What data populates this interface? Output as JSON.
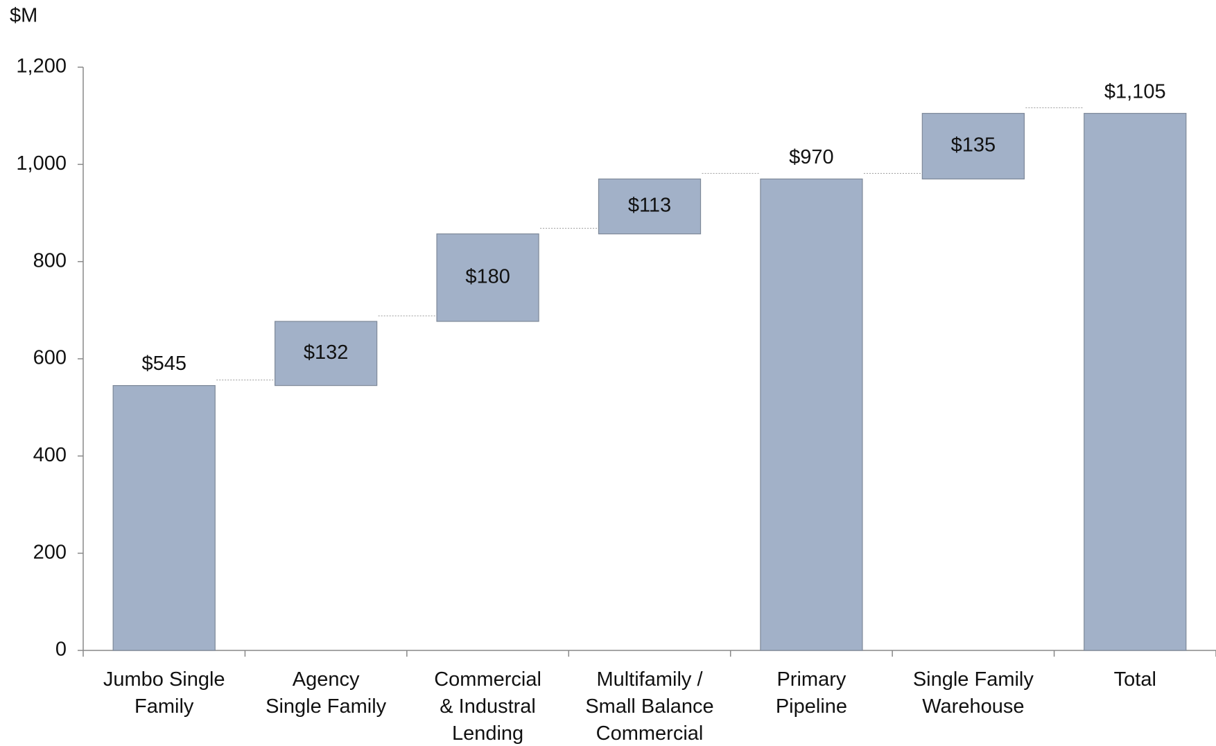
{
  "chart_data": {
    "type": "waterfall",
    "y_axis_label": "$M",
    "categories": [
      "Jumbo Single\nFamily",
      "Agency\nSingle Family",
      "Commercial\n& Industral\nLending",
      "Multifamily /\nSmall Balance\nCommercial",
      "Primary\nPipeline",
      "Single Family\nWarehouse",
      "Total"
    ],
    "values": [
      545,
      132,
      180,
      113,
      970,
      135,
      1105
    ],
    "value_labels": [
      "$545",
      "$132",
      "$180",
      "$113",
      "$970",
      "$135",
      "$1,105"
    ],
    "color": "#a2b1c8",
    "ylim": [
      0,
      1200
    ],
    "yticks": [
      0,
      200,
      400,
      600,
      800,
      {
        "value": 1000,
        "label": "1,000"
      },
      {
        "value": 1200,
        "label": "1,200"
      }
    ]
  }
}
